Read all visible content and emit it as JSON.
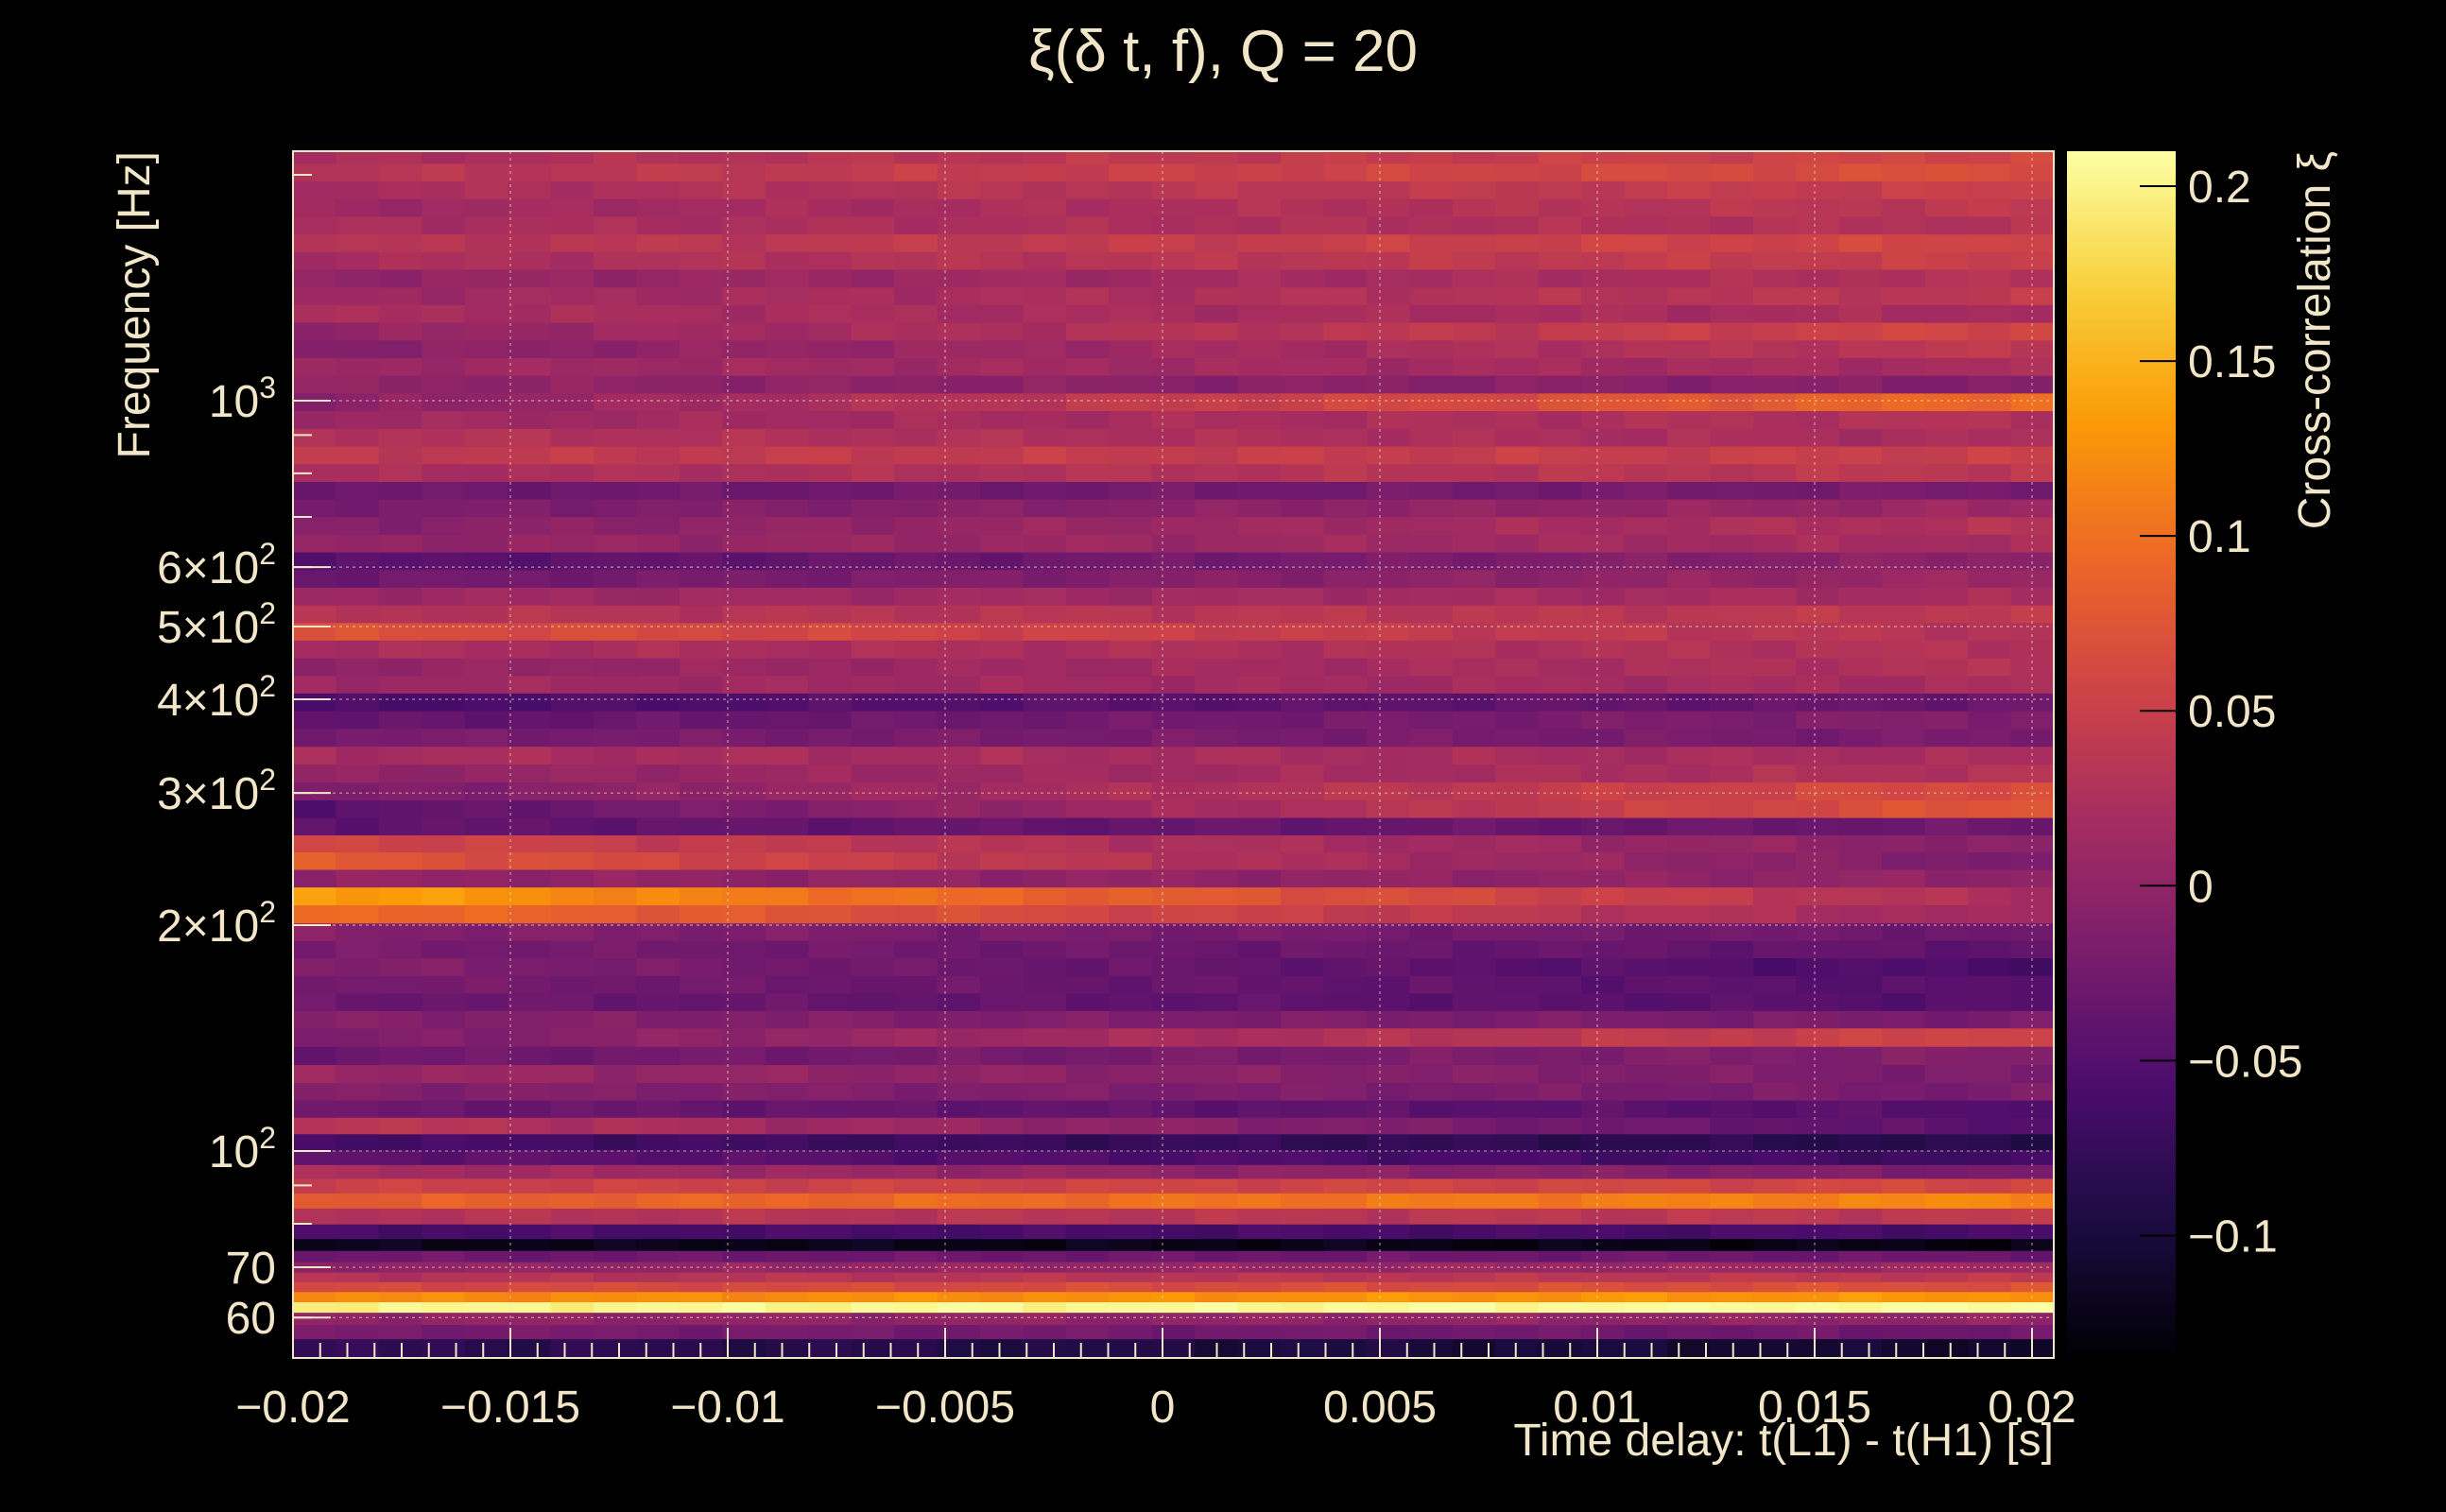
{
  "chart_data": {
    "type": "heatmap",
    "title": "ξ(δ t, f), Q = 20",
    "xlabel": "Time delay: t(L1) - t(H1) [s]",
    "ylabel": "Frequency [Hz]",
    "colorbar_label": "Cross-correlation ξ",
    "xlim": [
      -0.02,
      0.0205
    ],
    "ylim": [
      53,
      2150
    ],
    "yscale": "log",
    "zlim": [
      -0.135,
      0.21
    ],
    "colormap": [
      "#000004",
      "#1b0c41",
      "#4a0c6b",
      "#781c6d",
      "#a52c60",
      "#cf4446",
      "#ed6925",
      "#fb9b06",
      "#f7d13d",
      "#fcffa4"
    ],
    "x_ticks": [
      {
        "value": -0.02,
        "label": "−0.02"
      },
      {
        "value": -0.015,
        "label": "−0.015"
      },
      {
        "value": -0.01,
        "label": "−0.01"
      },
      {
        "value": -0.005,
        "label": "−0.005"
      },
      {
        "value": 0,
        "label": "0"
      },
      {
        "value": 0.005,
        "label": "0.005"
      },
      {
        "value": 0.01,
        "label": "0.01"
      },
      {
        "value": 0.015,
        "label": "0.015"
      },
      {
        "value": 0.02,
        "label": "0.02"
      }
    ],
    "y_ticks": [
      {
        "value": 60,
        "base": "60",
        "exp": ""
      },
      {
        "value": 70,
        "base": "70",
        "exp": ""
      },
      {
        "value": 100,
        "base": "10",
        "exp": "2"
      },
      {
        "value": 200,
        "base": "2×10",
        "exp": "2"
      },
      {
        "value": 300,
        "base": "3×10",
        "exp": "2"
      },
      {
        "value": 400,
        "base": "4×10",
        "exp": "2"
      },
      {
        "value": 500,
        "base": "5×10",
        "exp": "2"
      },
      {
        "value": 600,
        "base": "6×10",
        "exp": "2"
      },
      {
        "value": 1000,
        "base": "10",
        "exp": "3"
      }
    ],
    "z_ticks": [
      {
        "value": 0.2,
        "label": "0.2"
      },
      {
        "value": 0.15,
        "label": "0.15"
      },
      {
        "value": 0.1,
        "label": "0.1"
      },
      {
        "value": 0.05,
        "label": "0.05"
      },
      {
        "value": 0,
        "label": "0"
      },
      {
        "value": -0.05,
        "label": "−0.05"
      },
      {
        "value": -0.1,
        "label": "−0.1"
      }
    ],
    "frequency_bands": [
      {
        "f": 55,
        "start": -0.08,
        "end": -0.11
      },
      {
        "f": 57.5,
        "start": -0.02,
        "end": -0.03
      },
      {
        "f": 60,
        "start": 0.0,
        "end": 0.0
      },
      {
        "f": 62,
        "start": 0.2,
        "end": 0.21
      },
      {
        "f": 64,
        "start": 0.12,
        "end": 0.13
      },
      {
        "f": 66,
        "start": 0.06,
        "end": 0.07
      },
      {
        "f": 68,
        "start": 0.03,
        "end": 0.04
      },
      {
        "f": 70,
        "start": 0.0,
        "end": 0.01
      },
      {
        "f": 72.5,
        "start": -0.03,
        "end": -0.03
      },
      {
        "f": 75,
        "start": -0.12,
        "end": -0.125
      },
      {
        "f": 78,
        "start": -0.06,
        "end": -0.06
      },
      {
        "f": 82,
        "start": 0.03,
        "end": 0.04
      },
      {
        "f": 86,
        "start": 0.08,
        "end": 0.12
      },
      {
        "f": 90,
        "start": 0.05,
        "end": 0.06
      },
      {
        "f": 94,
        "start": 0.02,
        "end": -0.02
      },
      {
        "f": 98,
        "start": -0.04,
        "end": -0.07
      },
      {
        "f": 103,
        "start": -0.06,
        "end": -0.09
      },
      {
        "f": 108,
        "start": 0.04,
        "end": -0.05
      },
      {
        "f": 114,
        "start": -0.03,
        "end": -0.05
      },
      {
        "f": 120,
        "start": -0.01,
        "end": -0.02
      },
      {
        "f": 127,
        "start": 0.01,
        "end": -0.02
      },
      {
        "f": 134,
        "start": -0.03,
        "end": -0.01
      },
      {
        "f": 142,
        "start": -0.02,
        "end": 0.06
      },
      {
        "f": 150,
        "start": -0.01,
        "end": -0.02
      },
      {
        "f": 158,
        "start": -0.03,
        "end": -0.05
      },
      {
        "f": 167,
        "start": -0.02,
        "end": -0.05
      },
      {
        "f": 176,
        "start": -0.01,
        "end": -0.06
      },
      {
        "f": 186,
        "start": -0.02,
        "end": -0.04
      },
      {
        "f": 196,
        "start": -0.01,
        "end": -0.03
      },
      {
        "f": 207,
        "start": 0.1,
        "end": 0.01
      },
      {
        "f": 219,
        "start": 0.14,
        "end": 0.02
      },
      {
        "f": 231,
        "start": 0.0,
        "end": 0.0
      },
      {
        "f": 244,
        "start": 0.08,
        "end": -0.02
      },
      {
        "f": 257,
        "start": 0.06,
        "end": -0.01
      },
      {
        "f": 271,
        "start": -0.04,
        "end": -0.03
      },
      {
        "f": 286,
        "start": -0.05,
        "end": 0.08
      },
      {
        "f": 302,
        "start": -0.02,
        "end": 0.07
      },
      {
        "f": 319,
        "start": 0.0,
        "end": 0.03
      },
      {
        "f": 337,
        "start": 0.02,
        "end": 0.02
      },
      {
        "f": 356,
        "start": -0.02,
        "end": -0.02
      },
      {
        "f": 376,
        "start": -0.04,
        "end": -0.01
      },
      {
        "f": 397,
        "start": -0.06,
        "end": -0.03
      },
      {
        "f": 419,
        "start": 0.01,
        "end": 0.02
      },
      {
        "f": 442,
        "start": 0.0,
        "end": 0.03
      },
      {
        "f": 467,
        "start": 0.02,
        "end": 0.03
      },
      {
        "f": 493,
        "start": 0.07,
        "end": 0.03
      },
      {
        "f": 520,
        "start": 0.03,
        "end": 0.04
      },
      {
        "f": 549,
        "start": 0.01,
        "end": 0.02
      },
      {
        "f": 580,
        "start": -0.03,
        "end": 0.01
      },
      {
        "f": 612,
        "start": -0.05,
        "end": 0.0
      },
      {
        "f": 646,
        "start": 0.0,
        "end": 0.02
      },
      {
        "f": 682,
        "start": -0.01,
        "end": 0.03
      },
      {
        "f": 720,
        "start": -0.02,
        "end": 0.01
      },
      {
        "f": 760,
        "start": -0.03,
        "end": -0.02
      },
      {
        "f": 802,
        "start": 0.02,
        "end": 0.04
      },
      {
        "f": 847,
        "start": 0.04,
        "end": 0.05
      },
      {
        "f": 894,
        "start": 0.03,
        "end": 0.02
      },
      {
        "f": 944,
        "start": 0.01,
        "end": 0.03
      },
      {
        "f": 997,
        "start": -0.01,
        "end": 0.1
      },
      {
        "f": 1052,
        "start": 0.0,
        "end": -0.01
      },
      {
        "f": 1111,
        "start": 0.01,
        "end": 0.02
      },
      {
        "f": 1173,
        "start": -0.01,
        "end": 0.04
      },
      {
        "f": 1238,
        "start": 0.0,
        "end": 0.06
      },
      {
        "f": 1307,
        "start": 0.02,
        "end": 0.02
      },
      {
        "f": 1380,
        "start": 0.01,
        "end": 0.04
      },
      {
        "f": 1457,
        "start": 0.0,
        "end": 0.03
      },
      {
        "f": 1538,
        "start": 0.02,
        "end": 0.05
      },
      {
        "f": 1624,
        "start": 0.03,
        "end": 0.06
      },
      {
        "f": 1714,
        "start": 0.02,
        "end": 0.03
      },
      {
        "f": 1810,
        "start": 0.01,
        "end": 0.04
      },
      {
        "f": 1911,
        "start": 0.02,
        "end": 0.05
      },
      {
        "f": 2017,
        "start": 0.03,
        "end": 0.07
      },
      {
        "f": 2129,
        "start": 0.02,
        "end": 0.06
      }
    ]
  }
}
